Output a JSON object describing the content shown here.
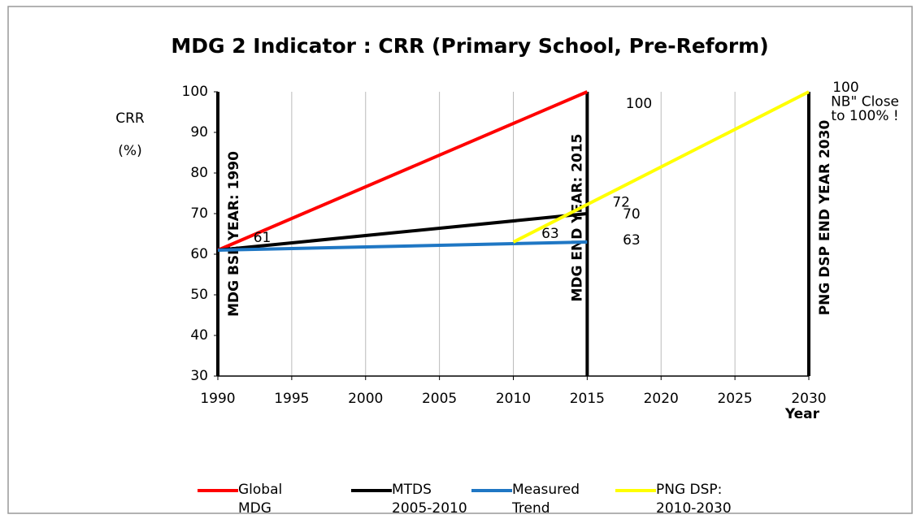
{
  "chart_data": {
    "type": "line",
    "title": "MDG 2 Indicator : CRR (Primary School, Pre-Reform)",
    "y_label": [
      "CRR",
      "(%)"
    ],
    "x_label": "Year",
    "xlim": [
      1990,
      2030
    ],
    "xticks": [
      1990,
      1995,
      2000,
      2005,
      2010,
      2015,
      2020,
      2025,
      2030
    ],
    "ylim": [
      30,
      100
    ],
    "yticks": [
      30,
      40,
      50,
      60,
      70,
      80,
      90,
      100
    ],
    "grid": "x",
    "legend": "bottom",
    "series": [
      {
        "name": "Global MDG",
        "color": "#ff0000",
        "x": [
          1990,
          2015
        ],
        "values": [
          61,
          100
        ]
      },
      {
        "name": "MTDS 2005-2010",
        "color": "#000000",
        "x": [
          1990,
          2015
        ],
        "values": [
          61,
          70
        ]
      },
      {
        "name": "Measured Trend",
        "color": "#1f77c4",
        "x": [
          1990,
          2015
        ],
        "values": [
          61,
          63
        ]
      },
      {
        "name": "PNG DSP: 2010-2030",
        "color": "#ffff00",
        "x": [
          2010,
          2030
        ],
        "values": [
          63,
          100
        ]
      }
    ],
    "reference_lines": [
      {
        "x": 1990,
        "label": "MDG BSE YEAR: 1990"
      },
      {
        "x": 2015,
        "label": "MDG END YEAR: 2015"
      },
      {
        "x": 2030,
        "label": "PNG DSP  END YEAR 2030"
      }
    ],
    "annotations": [
      {
        "text": "61",
        "x": 1993,
        "y": 64
      },
      {
        "text": "63",
        "x": 2012.5,
        "y": 65
      },
      {
        "text": "100",
        "x": 2018.5,
        "y": 97
      },
      {
        "text": "72",
        "x": 2017.3,
        "y": 72.7
      },
      {
        "text": "70",
        "x": 2018,
        "y": 69.8
      },
      {
        "text": "63",
        "x": 2018,
        "y": 63.4
      },
      {
        "text": "100",
        "x": 2032.5,
        "y": 101
      },
      {
        "text": "NB\" Close",
        "x": 2033.8,
        "y": 97.5
      },
      {
        "text": "to 100% !",
        "x": 2033.8,
        "y": 94
      }
    ]
  }
}
